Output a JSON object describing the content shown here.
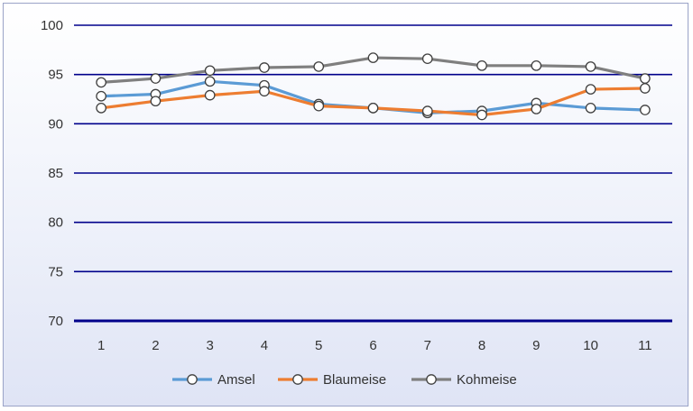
{
  "chart_data": {
    "type": "line",
    "title": "",
    "xlabel": "",
    "ylabel": "",
    "categories": [
      "1",
      "2",
      "3",
      "4",
      "5",
      "6",
      "7",
      "8",
      "9",
      "10",
      "11"
    ],
    "ylim": [
      70,
      100
    ],
    "yticks": [
      70,
      75,
      80,
      85,
      90,
      95,
      100
    ],
    "grid": true,
    "legend_position": "bottom",
    "series": [
      {
        "name": "Amsel",
        "color": "#5b9bd5",
        "values": [
          92.8,
          93.0,
          94.3,
          93.9,
          92.0,
          91.6,
          91.1,
          91.3,
          92.1,
          91.6,
          91.4
        ]
      },
      {
        "name": "Blaumeise",
        "color": "#ed7d31",
        "values": [
          91.6,
          92.3,
          92.9,
          93.3,
          91.8,
          91.6,
          91.3,
          90.9,
          91.5,
          93.5,
          93.6
        ]
      },
      {
        "name": "Kohmeise",
        "color": "#7f7f7f",
        "values": [
          94.2,
          94.6,
          95.4,
          95.7,
          95.8,
          96.7,
          96.6,
          95.9,
          95.9,
          95.8,
          94.6
        ]
      }
    ],
    "colors": {
      "gridline": "#00008b",
      "marker_fill": "#ffffff",
      "marker_stroke": "#404040"
    }
  }
}
